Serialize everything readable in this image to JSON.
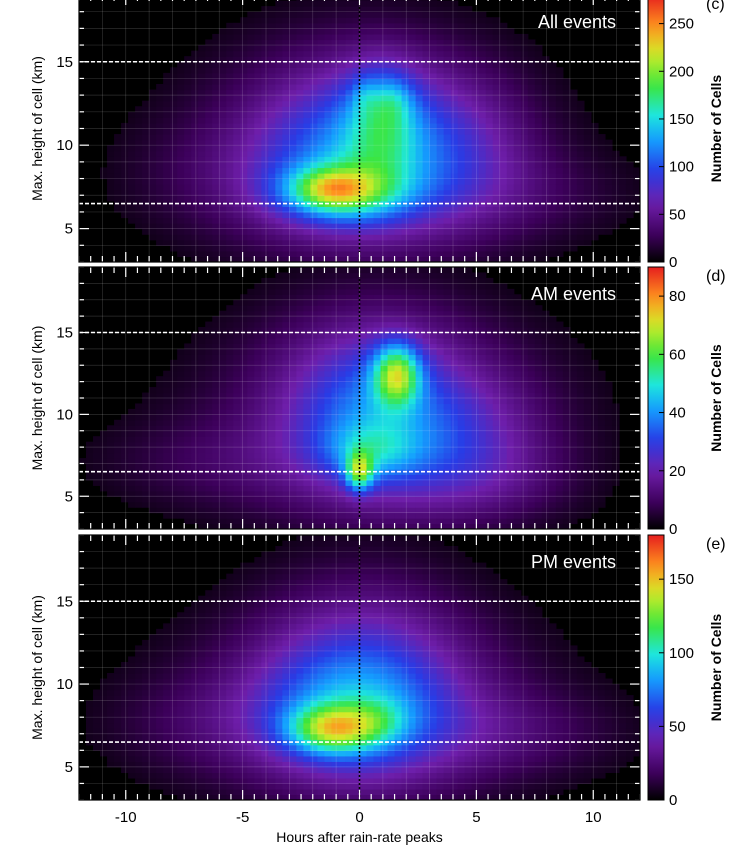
{
  "chart_data": {
    "type": "heatmap",
    "shared_x": {
      "label": "Hours after rain-rate peaks",
      "ticks": [
        -10,
        -5,
        0,
        5,
        10
      ],
      "range": [
        -12,
        12
      ]
    },
    "reference_lines": {
      "vertical_x": 0,
      "horizontal_y": [
        6.5,
        15
      ]
    },
    "colormap": "rainbow (black-purple-blue-cyan-green-yellow-red)",
    "panels": [
      {
        "letter": "(c)",
        "title": "All events",
        "ylabel": "Max. height of cell (km)",
        "yticks": [
          5,
          10,
          15
        ],
        "ylim": [
          3,
          19
        ],
        "colorbar": {
          "label": "Number of Cells",
          "ticks": [
            0,
            50,
            100,
            150,
            200,
            250
          ],
          "max": 280
        },
        "blobs": [
          {
            "x": 0,
            "y": 9.5,
            "sx": 5.2,
            "sy": 4.6,
            "v": 35
          },
          {
            "x": 0.3,
            "y": 10.5,
            "sx": 3.6,
            "sy": 4.2,
            "v": 45
          },
          {
            "x": 0,
            "y": 9.2,
            "sx": 2.7,
            "sy": 3.0,
            "v": 45
          },
          {
            "x": -0.8,
            "y": 7.2,
            "sx": 1.9,
            "sy": 1.2,
            "v": 90
          },
          {
            "x": 1.0,
            "y": 11.6,
            "sx": 1.1,
            "sy": 2.3,
            "v": 60
          },
          {
            "x": -1.2,
            "y": 7.4,
            "sx": 1.1,
            "sy": 0.8,
            "v": 55
          },
          {
            "x": 1.4,
            "y": 12.7,
            "sx": 0.6,
            "sy": 0.9,
            "v": 25
          },
          {
            "x": 0.2,
            "y": 13.0,
            "sx": 0.35,
            "sy": 0.8,
            "v": 20
          },
          {
            "x": 6.5,
            "y": 7.0,
            "sx": 4.0,
            "sy": 2.0,
            "v": 18
          },
          {
            "x": -5.5,
            "y": 8.0,
            "sx": 3.5,
            "sy": 2.5,
            "v": 15
          },
          {
            "x": 4.5,
            "y": 10.0,
            "sx": 2.2,
            "sy": 3.0,
            "v": 25
          }
        ]
      },
      {
        "letter": "(d)",
        "title": "AM events",
        "ylabel": "Max. height of cell (km)",
        "yticks": [
          5,
          10,
          15
        ],
        "ylim": [
          3,
          19
        ],
        "colorbar": {
          "label": "Number of Cells",
          "ticks": [
            0,
            20,
            40,
            60,
            80
          ],
          "max": 90
        },
        "blobs": [
          {
            "x": 1.0,
            "y": 9.8,
            "sx": 5.5,
            "sy": 4.6,
            "v": 12
          },
          {
            "x": 0.8,
            "y": 11.0,
            "sx": 3.3,
            "sy": 4.5,
            "v": 12
          },
          {
            "x": 0.5,
            "y": 10.0,
            "sx": 2.3,
            "sy": 3.2,
            "v": 14
          },
          {
            "x": 1.6,
            "y": 12.5,
            "sx": 0.7,
            "sy": 1.3,
            "v": 40
          },
          {
            "x": 0.0,
            "y": 6.5,
            "sx": 0.4,
            "sy": 0.8,
            "v": 35
          },
          {
            "x": 0.5,
            "y": 7.8,
            "sx": 1.4,
            "sy": 1.2,
            "v": 15
          },
          {
            "x": 4.5,
            "y": 8.5,
            "sx": 2.5,
            "sy": 2.8,
            "v": 10
          },
          {
            "x": -6.0,
            "y": 7.0,
            "sx": 4.0,
            "sy": 2.0,
            "v": 6
          },
          {
            "x": 5.5,
            "y": 6.0,
            "sx": 2.8,
            "sy": 1.8,
            "v": 6
          }
        ]
      },
      {
        "letter": "(e)",
        "title": "PM events",
        "ylabel": "Max. height of cell (km)",
        "yticks": [
          5,
          10,
          15
        ],
        "ylim": [
          3,
          19
        ],
        "colorbar": {
          "label": "Number of Cells",
          "ticks": [
            0,
            50,
            100,
            150
          ],
          "max": 180
        },
        "blobs": [
          {
            "x": 0,
            "y": 9.0,
            "sx": 5.5,
            "sy": 4.2,
            "v": 25
          },
          {
            "x": 0.2,
            "y": 10.5,
            "sx": 3.2,
            "sy": 4.6,
            "v": 30
          },
          {
            "x": -0.3,
            "y": 8.5,
            "sx": 2.6,
            "sy": 2.8,
            "v": 35
          },
          {
            "x": -1.2,
            "y": 7.3,
            "sx": 1.3,
            "sy": 1.0,
            "v": 70
          },
          {
            "x": 0.8,
            "y": 7.8,
            "sx": 1.0,
            "sy": 1.0,
            "v": 20
          },
          {
            "x": 6.0,
            "y": 7.0,
            "sx": 3.8,
            "sy": 1.9,
            "v": 15
          },
          {
            "x": -6.0,
            "y": 7.5,
            "sx": 3.5,
            "sy": 2.2,
            "v": 12
          }
        ]
      }
    ]
  }
}
